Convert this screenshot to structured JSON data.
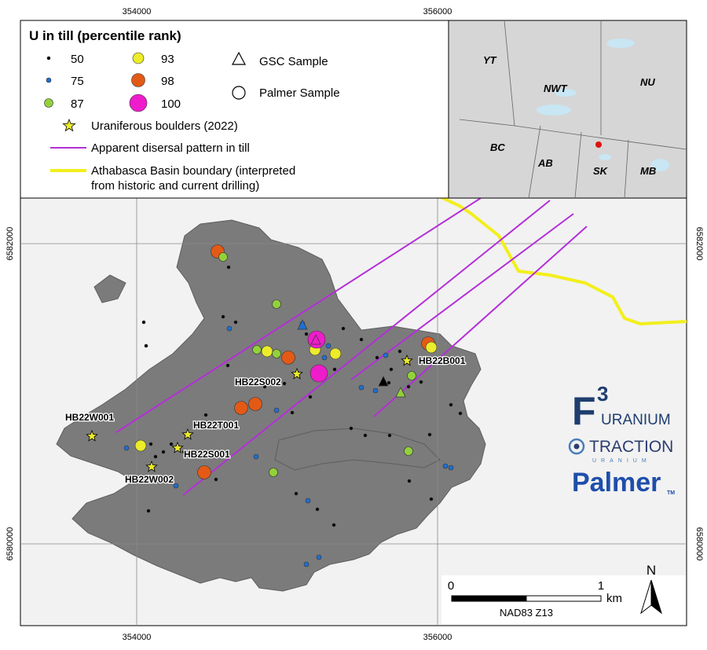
{
  "coords": {
    "top": [
      "354000",
      "356000"
    ],
    "bottom": [
      "354000",
      "356000"
    ],
    "left": [
      "6582000",
      "6580000"
    ],
    "right": [
      "6582000",
      "6580000"
    ]
  },
  "legend": {
    "title": "U in till (percentile rank)",
    "ranks": [
      {
        "label": "50",
        "color": "#000000"
      },
      {
        "label": "75",
        "color": "#1f6fd0"
      },
      {
        "label": "87",
        "color": "#92d13a"
      },
      {
        "label": "93",
        "color": "#ecec2a"
      },
      {
        "label": "98",
        "color": "#e35a16"
      },
      {
        "label": "100",
        "color": "#ee1ccb"
      }
    ],
    "gsc_sample": "GSC Sample",
    "palmer_sample": "Palmer Sample",
    "boulders": "Uraniferous boulders (2022)",
    "dispersal": "Apparent disersal pattern in till",
    "basin_line1": "Athabasca Basin boundary (interpreted",
    "basin_line2": "from historic and current drilling)"
  },
  "inset": {
    "labels": [
      "YT",
      "NWT",
      "NU",
      "BC",
      "AB",
      "SK",
      "MB"
    ],
    "location_marker_color": "#e01010"
  },
  "boulders": [
    "HB22W001",
    "HB22T001",
    "HB22S001",
    "HB22W002",
    "HB22S002",
    "HB22B001"
  ],
  "scale": {
    "start": "0",
    "end": "1",
    "unit": "km",
    "datum": "NAD83 Z13"
  },
  "north": "N",
  "logos": {
    "f3_big": "F",
    "f3_sup": "3",
    "f3_text": "URANIUM",
    "traction": "TRACTION",
    "traction_sub": "URANIUM",
    "palmer": "Palmer",
    "palmer_tm": "TM"
  },
  "colors": {
    "dispersal": "#b42fd8",
    "basin": "#f2ef1c",
    "island": "#7c7c7c",
    "f3_blue": "#1f3e6e",
    "palmer_blue": "#1f4eaa"
  }
}
